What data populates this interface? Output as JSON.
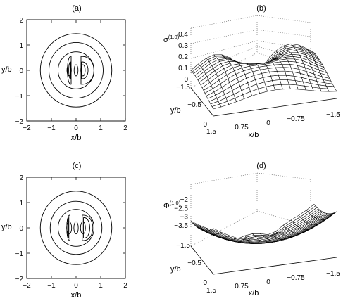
{
  "figure": {
    "panel_labels": [
      "(a)",
      "(b)",
      "(c)",
      "(d)"
    ]
  },
  "chart_data": [
    {
      "panel": "(a)",
      "type": "contour",
      "xlabel": "x/b",
      "ylabel": "y/b",
      "xlim": [
        -2,
        2
      ],
      "ylim": [
        -2,
        2
      ],
      "xticks": [
        "−2",
        "−1",
        "0",
        "1",
        "2"
      ],
      "yticks": [
        "−2",
        "−1",
        "0",
        "1",
        "2"
      ],
      "circle_radii": [
        1.45,
        1.1,
        0.73
      ],
      "lobe_pairs": [
        {
          "x_in": 0.2,
          "x_out": 0.65,
          "y_half": 0.55
        },
        {
          "x_in": 0.22,
          "x_out": 0.45,
          "y_half": 0.33
        }
      ],
      "center_ovals": [
        {
          "cx": -0.28,
          "rx": 0.09,
          "ry": 0.22
        },
        {
          "cx": 0.0,
          "rx": 0.08,
          "ry": 0.22
        },
        {
          "cx": 0.28,
          "rx": 0.09,
          "ry": 0.22
        }
      ]
    },
    {
      "panel": "(b)",
      "type": "surface",
      "zlabel": "σ",
      "zlabel_sup": "(1,0)",
      "xlabel": "x/b",
      "ylabel": "y/b",
      "zlim": [
        0,
        0.4
      ],
      "zticks": [
        "0",
        "0.1",
        "0.2",
        "0.3",
        "0.4"
      ],
      "xticks": [
        "1.5",
        "0.75",
        "0",
        "−0.75",
        "−1.5"
      ],
      "yticks": [
        "−1.5",
        "−0.5",
        "0"
      ]
    },
    {
      "panel": "(c)",
      "type": "contour",
      "xlabel": "x/b",
      "ylabel": "y/b",
      "xlim": [
        -2,
        2
      ],
      "ylim": [
        -2,
        2
      ],
      "xticks": [
        "−2",
        "−1",
        "0",
        "1",
        "2"
      ],
      "yticks": [
        "−2",
        "−1",
        "0",
        "1",
        "2"
      ],
      "circle_radii": [
        1.45,
        1.05,
        0.73
      ],
      "lobe_pairs": [
        {
          "x_in": 0.25,
          "x_out": 0.62,
          "y_half": 0.5
        },
        {
          "x_in": 0.3,
          "x_out": 0.52,
          "y_half": 0.4
        }
      ],
      "center_ovals": [
        {
          "cx": -0.28,
          "rx": 0.1,
          "ry": 0.24
        },
        {
          "cx": 0.0,
          "rx": 0.09,
          "ry": 0.24
        },
        {
          "cx": 0.28,
          "rx": 0.1,
          "ry": 0.24
        }
      ]
    },
    {
      "panel": "(d)",
      "type": "surface",
      "zlabel": "Φ",
      "zlabel_sup": "(1,0)",
      "xlabel": "x/b",
      "ylabel": "y/b",
      "zlim": [
        -3.5,
        -2
      ],
      "zticks": [
        "−2",
        "−2.5",
        "−3",
        "−3.5"
      ],
      "xticks": [
        "1.5",
        "0.75",
        "0",
        "−0.75",
        "−1.5"
      ],
      "yticks": [
        "−1.5",
        "−0.5",
        "0"
      ]
    }
  ]
}
